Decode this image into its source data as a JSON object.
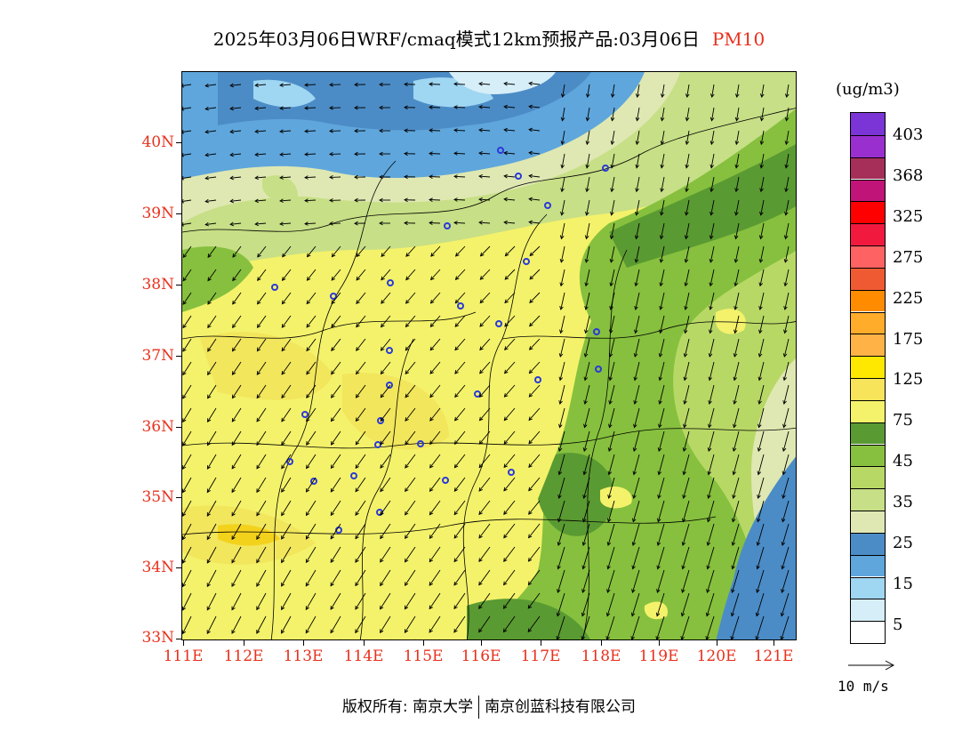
{
  "title": {
    "text": "2025年03月06日WRF/cmaq模式12km预报产品:03月06日",
    "pollutant": "PM10"
  },
  "map": {
    "lat_labels": [
      "40N",
      "39N",
      "38N",
      "37N",
      "36N",
      "35N",
      "34N",
      "33N"
    ],
    "lon_labels": [
      "111E",
      "112E",
      "113E",
      "114E",
      "115E",
      "116E",
      "117E",
      "118E",
      "119E",
      "120E",
      "121E"
    ]
  },
  "colorbar": {
    "unit": "(ug/m3)",
    "labels": [
      "403",
      "368",
      "325",
      "275",
      "225",
      "175",
      "125",
      "75",
      "45",
      "35",
      "25",
      "15",
      "5"
    ],
    "colors": [
      "#7b35d6",
      "#9a2fd0",
      "#a62f5a",
      "#c01478",
      "#ff0000",
      "#f2193f",
      "#ff6262",
      "#f05a32",
      "#ff8c00",
      "#ffac2a",
      "#ffb347",
      "#ffe800",
      "#f8e45a",
      "#f4f26a",
      "#5a9a32",
      "#86c03e",
      "#b8d866",
      "#c7df86",
      "#dfe8b2",
      "#4c8cc6",
      "#5fa6dc",
      "#9fd6f2",
      "#d6eef8",
      "#ffffff"
    ]
  },
  "wind_scale": {
    "label": "10 m/s"
  },
  "footer": {
    "left": "版权所有: 南京大学",
    "right": "南京创蓝科技有限公司"
  }
}
